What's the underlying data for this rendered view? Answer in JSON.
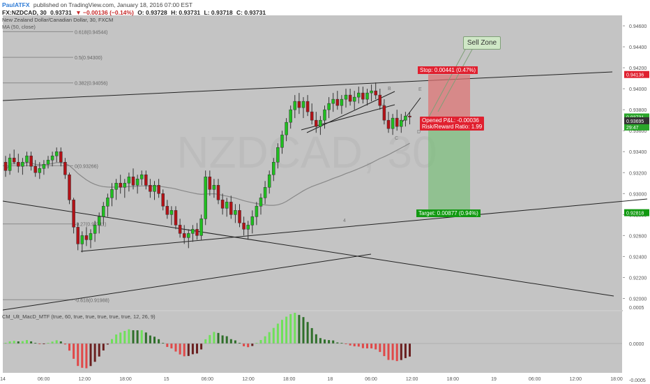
{
  "header": {
    "author": "PaulATFX",
    "published": "published on TradingView.com, January 18, 2016 07:00 EST",
    "symbol": "FX:NZDCAD, 30",
    "last": "0.93731",
    "change": "▼ −0.00136 (−0.14%)",
    "open": "O: 0.93728",
    "high": "H: 0.93731",
    "low": "L: 0.93718",
    "close": "C: 0.93731"
  },
  "chart_title": "New Zealand Dollar/Canadian Dollar, 30, FXCM",
  "ma_label": "MA (50, close)",
  "indicator_label": "CM_Ult_MacD_MTF (true, 60, true, true, true, true, true, 12, 26, 9)",
  "watermark": "NZDCAD, 30",
  "fib_levels": [
    {
      "label": "0.618(0.94544)",
      "value": 0.94544
    },
    {
      "label": "0.5(0.94300)",
      "value": 0.943
    },
    {
      "label": "0.382(0.94056)",
      "value": 0.94056
    },
    {
      "label": "0(0.93266)",
      "value": 0.93266
    },
    {
      "label": "-0.27(0.92711)",
      "value": 0.92711
    },
    {
      "label": "-0.618(0.91988)",
      "value": 0.91988
    }
  ],
  "annotations": {
    "sell_zone": "Sell Zone",
    "stop": "Stop: 0.00441 (0.47%)",
    "opened": "Opened P&L: -0.00036",
    "rr": "Risk/Reward Ratio: 1.99",
    "target": "Target: 0.00877 (0.94%)",
    "wave_labels": [
      "A",
      "B",
      "C",
      "D",
      "E",
      "4"
    ]
  },
  "price_axis": {
    "ticks": [
      "0.94600",
      "0.94400",
      "0.94200",
      "0.94000",
      "0.93800",
      "0.93600",
      "0.93400",
      "0.93200",
      "0.93000",
      "0.92800",
      "0.92600",
      "0.92400",
      "0.92200",
      "0.92000"
    ],
    "tick_values": [
      0.946,
      0.944,
      0.942,
      0.94,
      0.938,
      0.936,
      0.934,
      0.932,
      0.93,
      0.928,
      0.926,
      0.924,
      0.922,
      0.92
    ],
    "markers": [
      {
        "text": "0.94136",
        "value": 0.94136,
        "color": "#e0202f"
      },
      {
        "text": "0.93731",
        "value": 0.93731,
        "color": "#2aa52a"
      },
      {
        "text": "29:47",
        "value": 0.93635,
        "color": "#2aa52a"
      },
      {
        "text": "0.93695",
        "value": 0.93695,
        "color": "#333333"
      },
      {
        "text": "0.92818",
        "value": 0.92818,
        "color": "#119911"
      }
    ]
  },
  "macd_axis": {
    "ticks": [
      "0.0005",
      "0.0000",
      "-0.0005"
    ],
    "tick_values": [
      0.0005,
      0,
      -0.0005
    ]
  },
  "time_axis": {
    "labels": [
      "14",
      "06:00",
      "12:00",
      "18:00",
      "15",
      "06:00",
      "12:00",
      "18:00",
      "18",
      "06:00",
      "12:00",
      "18:00",
      "19",
      "06:00",
      "12:00",
      "18:00"
    ]
  },
  "colors": {
    "bg": "#c4c4c4",
    "up": "#1fbf1f",
    "down": "#b31217",
    "ma": "#888888",
    "macd_up": "#6fe05a",
    "macd_up_dim": "#2f6f2a",
    "macd_down": "#e04848",
    "macd_down_dim": "#6a1f1f"
  },
  "chart_data": {
    "type": "candlestick",
    "title": "New Zealand Dollar/Canadian Dollar, 30, FXCM",
    "xlabel": "",
    "ylabel": "",
    "ylim": [
      0.919,
      0.947
    ],
    "start": "2016-01-14 00:00",
    "interval_minutes": 30,
    "ohlc": [
      [
        0.933,
        0.9336,
        0.9316,
        0.9322
      ],
      [
        0.9322,
        0.9338,
        0.9318,
        0.9334
      ],
      [
        0.9334,
        0.9342,
        0.9328,
        0.933
      ],
      [
        0.933,
        0.9338,
        0.932,
        0.9326
      ],
      [
        0.9326,
        0.9334,
        0.9318,
        0.933
      ],
      [
        0.933,
        0.934,
        0.9326,
        0.9336
      ],
      [
        0.9336,
        0.934,
        0.9322,
        0.9326
      ],
      [
        0.9326,
        0.9332,
        0.9316,
        0.932
      ],
      [
        0.932,
        0.933,
        0.9314,
        0.9324
      ],
      [
        0.9324,
        0.9332,
        0.9318,
        0.9328
      ],
      [
        0.9328,
        0.9336,
        0.9324,
        0.9332
      ],
      [
        0.9332,
        0.934,
        0.9326,
        0.9336
      ],
      [
        0.9336,
        0.9344,
        0.933,
        0.934
      ],
      [
        0.934,
        0.9344,
        0.9326,
        0.933
      ],
      [
        0.933,
        0.9334,
        0.9314,
        0.9318
      ],
      [
        0.9318,
        0.932,
        0.929,
        0.9294
      ],
      [
        0.9294,
        0.9296,
        0.9262,
        0.9268
      ],
      [
        0.9268,
        0.9272,
        0.9246,
        0.9252
      ],
      [
        0.9252,
        0.9264,
        0.9244,
        0.926
      ],
      [
        0.926,
        0.9268,
        0.925,
        0.9256
      ],
      [
        0.9256,
        0.9266,
        0.9248,
        0.9262
      ],
      [
        0.9262,
        0.9274,
        0.9254,
        0.927
      ],
      [
        0.927,
        0.9282,
        0.9262,
        0.9278
      ],
      [
        0.9278,
        0.9292,
        0.927,
        0.9288
      ],
      [
        0.9288,
        0.93,
        0.9278,
        0.9296
      ],
      [
        0.9296,
        0.931,
        0.9288,
        0.9304
      ],
      [
        0.9304,
        0.9314,
        0.9294,
        0.931
      ],
      [
        0.931,
        0.9318,
        0.93,
        0.9306
      ],
      [
        0.9306,
        0.9314,
        0.9296,
        0.931
      ],
      [
        0.931,
        0.932,
        0.9302,
        0.9316
      ],
      [
        0.9316,
        0.9324,
        0.9304,
        0.9308
      ],
      [
        0.9308,
        0.9318,
        0.93,
        0.9314
      ],
      [
        0.9314,
        0.9322,
        0.9308,
        0.9318
      ],
      [
        0.9318,
        0.9322,
        0.9304,
        0.9308
      ],
      [
        0.9308,
        0.9314,
        0.9296,
        0.9302
      ],
      [
        0.9302,
        0.9312,
        0.9294,
        0.9308
      ],
      [
        0.9308,
        0.9314,
        0.9296,
        0.93
      ],
      [
        0.93,
        0.9304,
        0.9284,
        0.9288
      ],
      [
        0.9288,
        0.9294,
        0.9276,
        0.928
      ],
      [
        0.928,
        0.9288,
        0.927,
        0.9284
      ],
      [
        0.9284,
        0.9288,
        0.9266,
        0.927
      ],
      [
        0.927,
        0.9276,
        0.9258,
        0.9262
      ],
      [
        0.9262,
        0.927,
        0.9252,
        0.9258
      ],
      [
        0.9258,
        0.9266,
        0.9248,
        0.9262
      ],
      [
        0.9262,
        0.927,
        0.9254,
        0.9266
      ],
      [
        0.9266,
        0.9272,
        0.9256,
        0.926
      ],
      [
        0.926,
        0.928,
        0.9256,
        0.9276
      ],
      [
        0.9276,
        0.9322,
        0.927,
        0.9316
      ],
      [
        0.9316,
        0.9322,
        0.9298,
        0.9304
      ],
      [
        0.9304,
        0.9314,
        0.9296,
        0.9308
      ],
      [
        0.9308,
        0.9314,
        0.929,
        0.9294
      ],
      [
        0.9294,
        0.93,
        0.928,
        0.9286
      ],
      [
        0.9286,
        0.9296,
        0.9278,
        0.9292
      ],
      [
        0.9292,
        0.9298,
        0.9276,
        0.928
      ],
      [
        0.928,
        0.929,
        0.9272,
        0.9284
      ],
      [
        0.9284,
        0.929,
        0.9268,
        0.9272
      ],
      [
        0.9272,
        0.9278,
        0.926,
        0.9266
      ],
      [
        0.9266,
        0.9274,
        0.9256,
        0.927
      ],
      [
        0.927,
        0.9284,
        0.9262,
        0.9278
      ],
      [
        0.9278,
        0.9292,
        0.927,
        0.9288
      ],
      [
        0.9288,
        0.93,
        0.928,
        0.9296
      ],
      [
        0.9296,
        0.9312,
        0.929,
        0.9306
      ],
      [
        0.9306,
        0.9322,
        0.93,
        0.9318
      ],
      [
        0.9318,
        0.9334,
        0.9312,
        0.933
      ],
      [
        0.933,
        0.9348,
        0.9324,
        0.9344
      ],
      [
        0.9344,
        0.936,
        0.9338,
        0.9356
      ],
      [
        0.9356,
        0.9372,
        0.935,
        0.9368
      ],
      [
        0.9368,
        0.9384,
        0.9362,
        0.938
      ],
      [
        0.938,
        0.9394,
        0.9372,
        0.9388
      ],
      [
        0.9388,
        0.9396,
        0.9376,
        0.9382
      ],
      [
        0.9382,
        0.9392,
        0.9372,
        0.9388
      ],
      [
        0.9388,
        0.9394,
        0.9374,
        0.9378
      ],
      [
        0.9378,
        0.9386,
        0.9366,
        0.937
      ],
      [
        0.937,
        0.9378,
        0.9358,
        0.9364
      ],
      [
        0.9364,
        0.9374,
        0.9356,
        0.937
      ],
      [
        0.937,
        0.9384,
        0.9362,
        0.938
      ],
      [
        0.938,
        0.9392,
        0.9372,
        0.9386
      ],
      [
        0.9386,
        0.9396,
        0.9378,
        0.939
      ],
      [
        0.939,
        0.9398,
        0.938,
        0.9384
      ],
      [
        0.9384,
        0.9394,
        0.9376,
        0.939
      ],
      [
        0.939,
        0.94,
        0.9382,
        0.9394
      ],
      [
        0.9394,
        0.94,
        0.9384,
        0.9388
      ],
      [
        0.9388,
        0.9398,
        0.938,
        0.9392
      ],
      [
        0.9392,
        0.9402,
        0.9386,
        0.9396
      ],
      [
        0.9396,
        0.9402,
        0.9386,
        0.939
      ],
      [
        0.939,
        0.94,
        0.9384,
        0.9396
      ],
      [
        0.9396,
        0.9404,
        0.9388,
        0.9398
      ],
      [
        0.9398,
        0.9406,
        0.939,
        0.9394
      ],
      [
        0.9394,
        0.94,
        0.938,
        0.9384
      ],
      [
        0.9384,
        0.939,
        0.9366,
        0.937
      ],
      [
        0.937,
        0.9378,
        0.9358,
        0.9362
      ],
      [
        0.9362,
        0.9376,
        0.9356,
        0.9372
      ],
      [
        0.9372,
        0.938,
        0.936,
        0.9364
      ],
      [
        0.9364,
        0.9376,
        0.9358,
        0.937
      ],
      [
        0.937,
        0.9378,
        0.9364,
        0.9374
      ],
      [
        0.9374,
        0.9378,
        0.9366,
        0.9373
      ]
    ],
    "ma_period": 50,
    "trade": {
      "entry": 0.93695,
      "stop": 0.94136,
      "target": 0.92818
    }
  }
}
